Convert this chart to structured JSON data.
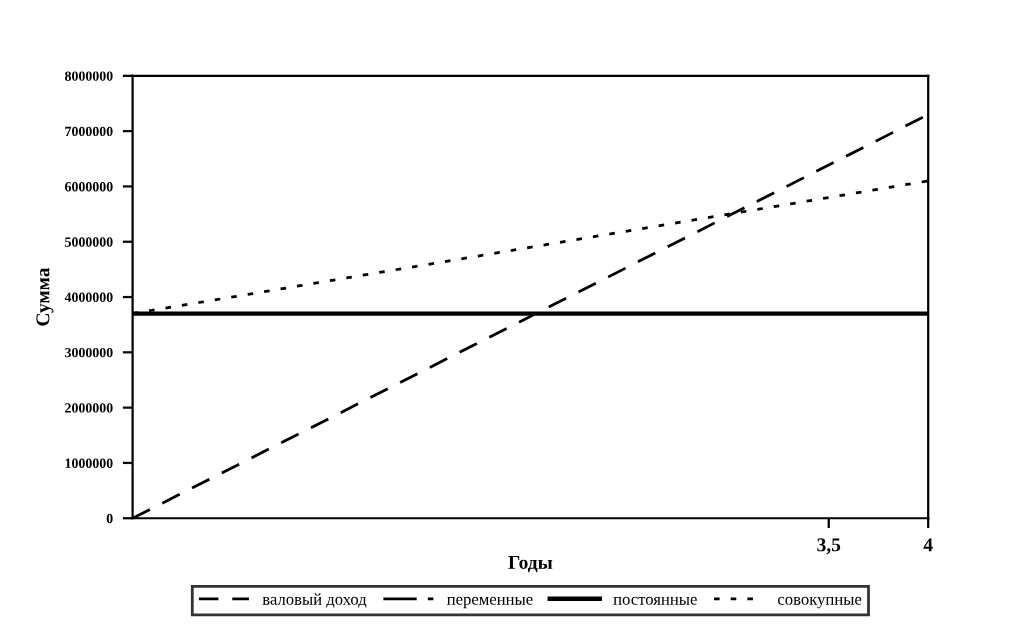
{
  "chart_data": {
    "type": "line",
    "xlabel": "Годы",
    "ylabel": "Сумма",
    "x": [
      0,
      4
    ],
    "xlim": [
      0,
      4
    ],
    "xticks": [
      {
        "value": 3.5,
        "label": "3,5"
      },
      4
    ],
    "ylim": [
      0,
      8000000
    ],
    "yticks": [
      0,
      1000000,
      2000000,
      3000000,
      4000000,
      5000000,
      6000000,
      7000000,
      8000000
    ],
    "series": [
      {
        "name": "валовый доход",
        "color": "#000000",
        "line_style": "dashed",
        "values": [
          0,
          7300000
        ]
      },
      {
        "name": "переменные",
        "color": "#000000",
        "line_style": "dashdot",
        "values": [
          null,
          null
        ]
      },
      {
        "name": "постоянные",
        "color": "#000000",
        "line_style": "solid",
        "values": [
          3700000,
          3700000
        ]
      },
      {
        "name": "совокупные",
        "color": "#000000",
        "line_style": "dotted",
        "values": [
          3700000,
          6100000
        ]
      }
    ],
    "grid": false,
    "legend": "bottom",
    "marker": "none"
  }
}
